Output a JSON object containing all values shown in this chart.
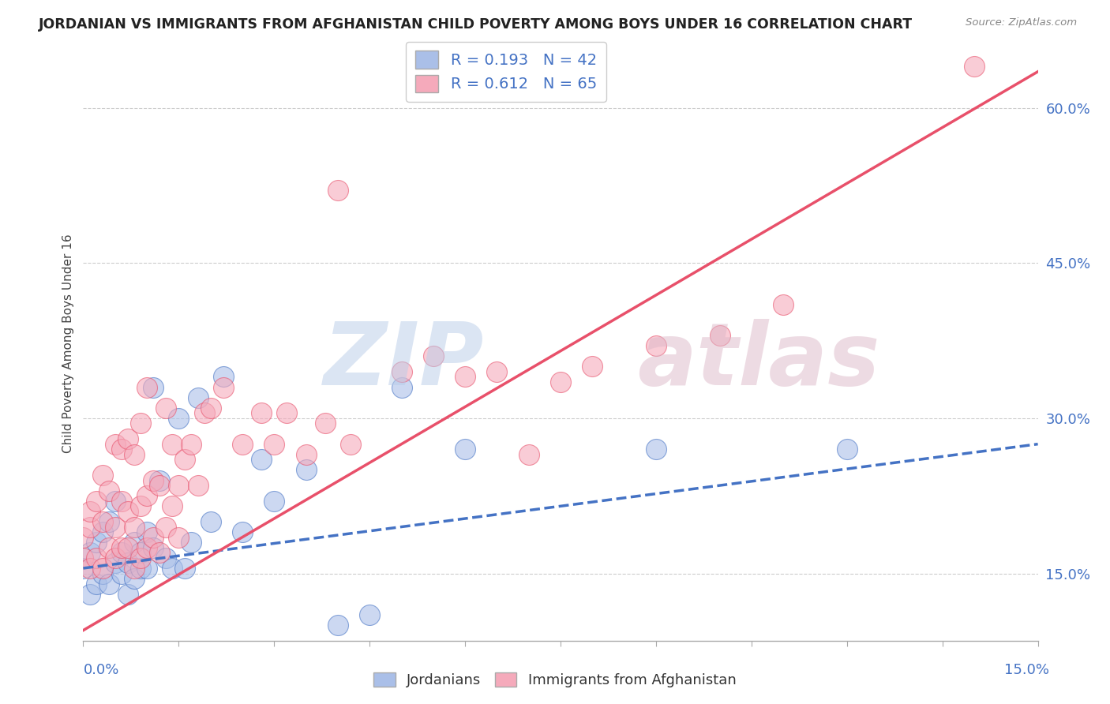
{
  "title": "JORDANIAN VS IMMIGRANTS FROM AFGHANISTAN CHILD POVERTY AMONG BOYS UNDER 16 CORRELATION CHART",
  "source": "Source: ZipAtlas.com",
  "xlabel_bottom_left": "0.0%",
  "xlabel_bottom_right": "15.0%",
  "ylabel": "Child Poverty Among Boys Under 16",
  "yaxis_labels": [
    "15.0%",
    "30.0%",
    "45.0%",
    "60.0%"
  ],
  "y_ticks": [
    0.15,
    0.3,
    0.45,
    0.6
  ],
  "xmin": 0.0,
  "xmax": 0.15,
  "ymin": 0.085,
  "ymax": 0.66,
  "blue_R": 0.193,
  "blue_N": 42,
  "pink_R": 0.612,
  "pink_N": 65,
  "blue_color": "#AABFE8",
  "pink_color": "#F5AABB",
  "blue_line_color": "#4472C4",
  "pink_line_color": "#E8506A",
  "legend_label_blue": "Jordanians",
  "legend_label_pink": "Immigrants from Afghanistan",
  "blue_scatter_x": [
    0.0,
    0.001,
    0.001,
    0.002,
    0.002,
    0.003,
    0.003,
    0.004,
    0.004,
    0.005,
    0.005,
    0.006,
    0.006,
    0.007,
    0.007,
    0.008,
    0.008,
    0.009,
    0.009,
    0.01,
    0.01,
    0.011,
    0.011,
    0.012,
    0.013,
    0.014,
    0.015,
    0.016,
    0.017,
    0.018,
    0.02,
    0.022,
    0.025,
    0.028,
    0.03,
    0.035,
    0.04,
    0.045,
    0.05,
    0.06,
    0.09,
    0.12
  ],
  "blue_scatter_y": [
    0.155,
    0.13,
    0.17,
    0.14,
    0.18,
    0.15,
    0.19,
    0.14,
    0.2,
    0.16,
    0.22,
    0.15,
    0.17,
    0.13,
    0.16,
    0.145,
    0.18,
    0.155,
    0.17,
    0.155,
    0.19,
    0.33,
    0.175,
    0.24,
    0.165,
    0.155,
    0.3,
    0.155,
    0.18,
    0.32,
    0.2,
    0.34,
    0.19,
    0.26,
    0.22,
    0.25,
    0.1,
    0.11,
    0.33,
    0.27,
    0.27,
    0.27
  ],
  "pink_scatter_x": [
    0.0,
    0.0,
    0.001,
    0.001,
    0.001,
    0.002,
    0.002,
    0.003,
    0.003,
    0.003,
    0.004,
    0.004,
    0.005,
    0.005,
    0.005,
    0.006,
    0.006,
    0.006,
    0.007,
    0.007,
    0.007,
    0.008,
    0.008,
    0.008,
    0.009,
    0.009,
    0.009,
    0.01,
    0.01,
    0.01,
    0.011,
    0.011,
    0.012,
    0.012,
    0.013,
    0.013,
    0.014,
    0.014,
    0.015,
    0.015,
    0.016,
    0.017,
    0.018,
    0.019,
    0.02,
    0.022,
    0.025,
    0.028,
    0.03,
    0.032,
    0.035,
    0.038,
    0.04,
    0.042,
    0.05,
    0.055,
    0.06,
    0.065,
    0.07,
    0.075,
    0.08,
    0.09,
    0.1,
    0.11,
    0.14
  ],
  "pink_scatter_y": [
    0.165,
    0.185,
    0.155,
    0.195,
    0.21,
    0.165,
    0.22,
    0.155,
    0.2,
    0.245,
    0.175,
    0.23,
    0.165,
    0.195,
    0.275,
    0.175,
    0.22,
    0.27,
    0.175,
    0.21,
    0.28,
    0.155,
    0.195,
    0.265,
    0.165,
    0.215,
    0.295,
    0.175,
    0.225,
    0.33,
    0.185,
    0.24,
    0.17,
    0.235,
    0.195,
    0.31,
    0.215,
    0.275,
    0.185,
    0.235,
    0.26,
    0.275,
    0.235,
    0.305,
    0.31,
    0.33,
    0.275,
    0.305,
    0.275,
    0.305,
    0.265,
    0.295,
    0.52,
    0.275,
    0.345,
    0.36,
    0.34,
    0.345,
    0.265,
    0.335,
    0.35,
    0.37,
    0.38,
    0.41,
    0.64
  ],
  "blue_line_x": [
    0.0,
    0.15
  ],
  "blue_line_y": [
    0.155,
    0.275
  ],
  "pink_line_x": [
    0.0,
    0.15
  ],
  "pink_line_y": [
    0.095,
    0.635
  ],
  "num_xticks": 11
}
